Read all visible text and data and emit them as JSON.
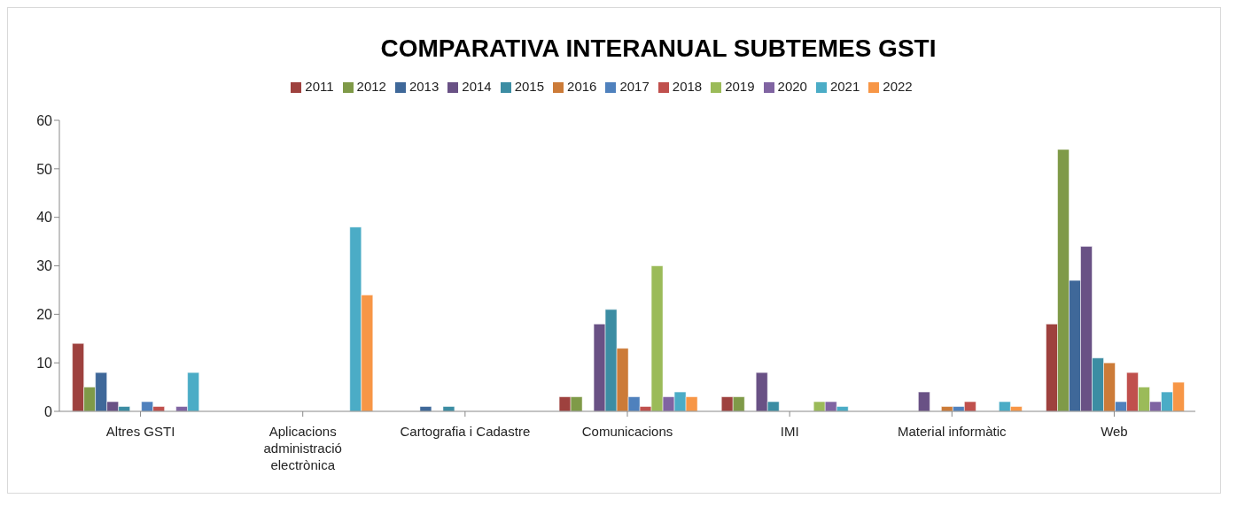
{
  "chart_data": {
    "type": "bar",
    "title": "COMPARATIVA INTERANUAL SUBTEMES GSTI",
    "categories": [
      "Altres GSTI",
      "Aplicacions administració electrònica",
      "Cartografia i Cadastre",
      "Comunicacions",
      "IMI",
      "Material informàtic",
      "Web"
    ],
    "series": [
      {
        "name": "2011",
        "color": "#9e413e",
        "values": [
          14,
          0,
          0,
          3,
          3,
          0,
          18
        ]
      },
      {
        "name": "2012",
        "color": "#7f9a48",
        "values": [
          5,
          0,
          0,
          3,
          3,
          0,
          54
        ]
      },
      {
        "name": "2013",
        "color": "#3f6899",
        "values": [
          8,
          0,
          1,
          0,
          0,
          0,
          27
        ]
      },
      {
        "name": "2014",
        "color": "#695185",
        "values": [
          2,
          0,
          0,
          18,
          8,
          4,
          34
        ]
      },
      {
        "name": "2015",
        "color": "#3c8da3",
        "values": [
          1,
          0,
          1,
          21,
          2,
          0,
          11
        ]
      },
      {
        "name": "2016",
        "color": "#cc7b38",
        "values": [
          0,
          0,
          0,
          13,
          0,
          1,
          10
        ]
      },
      {
        "name": "2017",
        "color": "#4f81bd",
        "values": [
          2,
          0,
          0,
          3,
          0,
          1,
          2
        ]
      },
      {
        "name": "2018",
        "color": "#c0504d",
        "values": [
          1,
          0,
          0,
          1,
          0,
          2,
          8
        ]
      },
      {
        "name": "2019",
        "color": "#9bbb59",
        "values": [
          0,
          0,
          0,
          30,
          2,
          0,
          5
        ]
      },
      {
        "name": "2020",
        "color": "#8064a2",
        "values": [
          1,
          0,
          0,
          3,
          2,
          0,
          2
        ]
      },
      {
        "name": "2021",
        "color": "#4bacc6",
        "values": [
          8,
          38,
          0,
          4,
          1,
          2,
          4
        ]
      },
      {
        "name": "2022",
        "color": "#f79646",
        "values": [
          0,
          24,
          0,
          3,
          0,
          1,
          6
        ]
      }
    ],
    "ylim": [
      0,
      60
    ],
    "yticks": [
      0,
      10,
      20,
      30,
      40,
      50,
      60
    ],
    "grid": false,
    "legend": "top"
  }
}
